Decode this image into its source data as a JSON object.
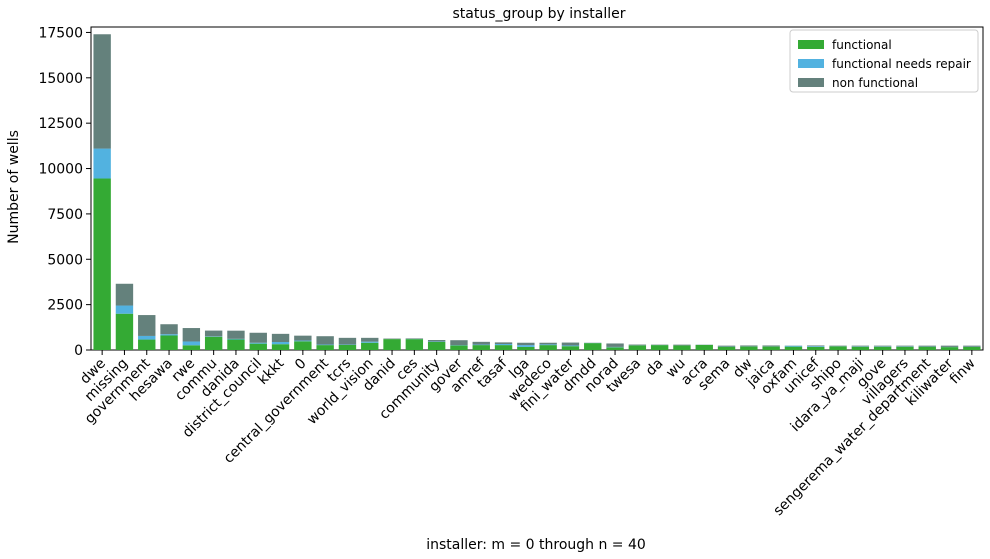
{
  "chart_data": {
    "type": "bar",
    "stacked": true,
    "title": "status_group by installer",
    "xlabel": "installer: m = 0 through n = 40",
    "ylabel": "Number of wells",
    "ylim": [
      0,
      17800
    ],
    "yticks": [
      0,
      2500,
      5000,
      7500,
      10000,
      12500,
      15000,
      17500
    ],
    "legend_position": "top-right",
    "categories": [
      "dwe",
      "missing",
      "government",
      "hesawa",
      "rwe",
      "commu",
      "danida",
      "district_council",
      "kkkt",
      "0",
      "central_government",
      "tcrs",
      "world_vision",
      "danid",
      "ces",
      "community",
      "gover",
      "amref",
      "tasaf",
      "lga",
      "wedeco",
      "fini_water",
      "dmdd",
      "norad",
      "twesa",
      "da",
      "wu",
      "acra",
      "sema",
      "dw",
      "jaica",
      "oxfam",
      "unicef",
      "shipo",
      "idara_ya_maji",
      "gove",
      "villagers",
      "sengerema_water_department",
      "kiliwater",
      "finw"
    ],
    "series": [
      {
        "name": "functional",
        "color": "#34aa34",
        "values": [
          9450,
          2000,
          575,
          800,
          260,
          730,
          580,
          350,
          320,
          480,
          270,
          280,
          400,
          600,
          600,
          450,
          250,
          270,
          270,
          170,
          270,
          210,
          380,
          150,
          250,
          270,
          250,
          280,
          180,
          190,
          190,
          185,
          170,
          200,
          180,
          180,
          180,
          180,
          160,
          170
        ]
      },
      {
        "name": "functional needs repair",
        "color": "#52b2e0",
        "values": [
          1650,
          450,
          200,
          70,
          210,
          20,
          35,
          50,
          120,
          40,
          30,
          20,
          60,
          0,
          10,
          20,
          20,
          30,
          60,
          100,
          40,
          40,
          10,
          20,
          10,
          5,
          5,
          5,
          10,
          10,
          10,
          50,
          40,
          10,
          20,
          20,
          20,
          10,
          10,
          10
        ]
      },
      {
        "name": "non functional",
        "color": "#64817c",
        "values": [
          6300,
          1200,
          1150,
          550,
          740,
          320,
          450,
          550,
          450,
          270,
          460,
          370,
          210,
          30,
          30,
          80,
          270,
          150,
          90,
          130,
          90,
          160,
          10,
          190,
          40,
          20,
          40,
          10,
          50,
          50,
          50,
          10,
          40,
          30,
          40,
          40,
          40,
          50,
          70,
          60
        ]
      }
    ]
  }
}
